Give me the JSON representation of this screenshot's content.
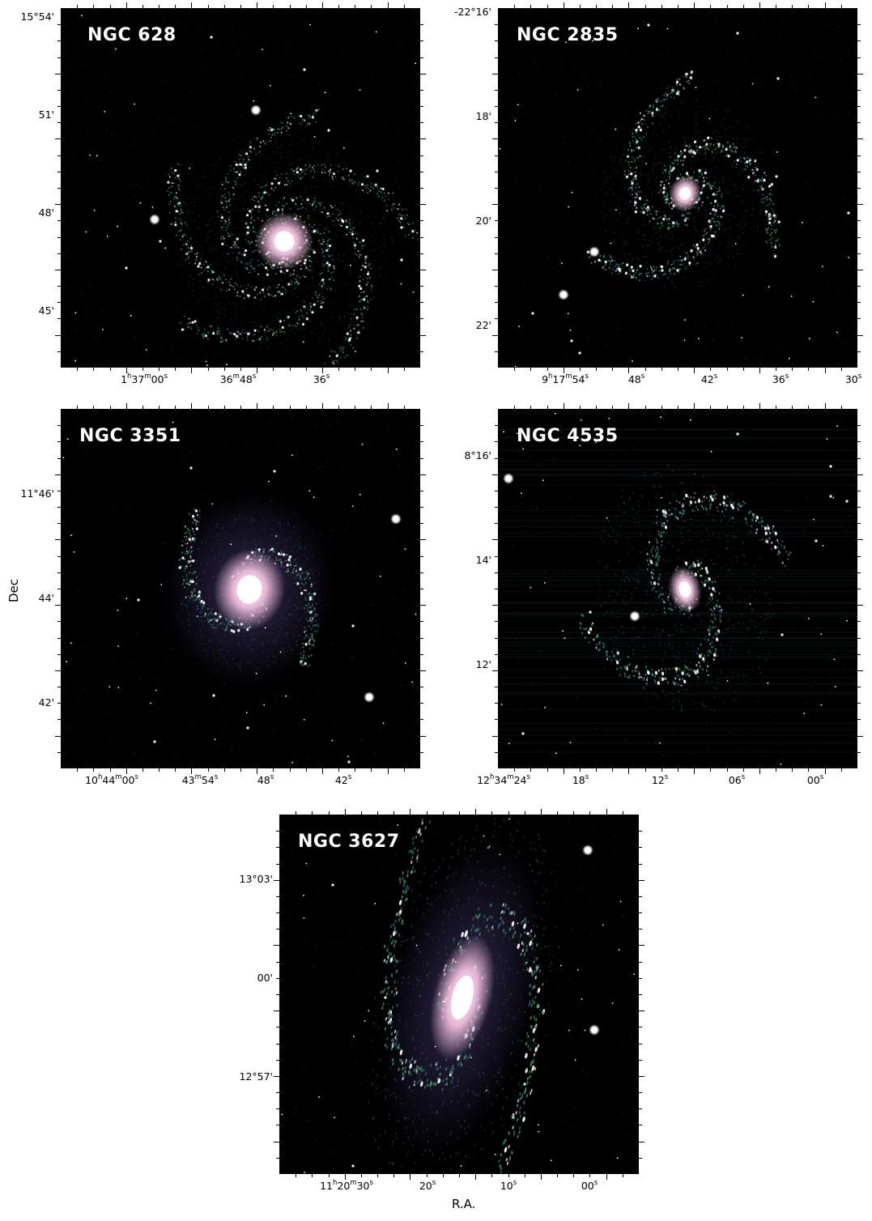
{
  "figure": {
    "ylabel": "Dec",
    "xlabel": "R.A."
  },
  "panels": [
    {
      "id": "ngc628",
      "name": "NGC 628",
      "dec_ticks": [
        "15°54'",
        "51'",
        "48'",
        "45'"
      ],
      "ra_ticks": [
        {
          "h": "1",
          "hu": "h",
          "m": "37",
          "mu": "m",
          "s": "00",
          "su": "s"
        },
        {
          "h": "",
          "hu": "",
          "m": "36",
          "mu": "m",
          "s": "48",
          "su": "s"
        },
        {
          "h": "",
          "hu": "",
          "m": "",
          "mu": "",
          "s": "36",
          "su": "s"
        }
      ]
    },
    {
      "id": "ngc2835",
      "name": "NGC 2835",
      "dec_ticks": [
        "-22°16'",
        "18'",
        "20'",
        "22'"
      ],
      "ra_ticks": [
        {
          "h": "9",
          "hu": "h",
          "m": "17",
          "mu": "m",
          "s": "54",
          "su": "s"
        },
        {
          "h": "",
          "hu": "",
          "m": "",
          "mu": "",
          "s": "48",
          "su": "s"
        },
        {
          "h": "",
          "hu": "",
          "m": "",
          "mu": "",
          "s": "42",
          "su": "s"
        },
        {
          "h": "",
          "hu": "",
          "m": "",
          "mu": "",
          "s": "36",
          "su": "s"
        },
        {
          "h": "",
          "hu": "",
          "m": "",
          "mu": "",
          "s": "30",
          "su": "s"
        }
      ]
    },
    {
      "id": "ngc3351",
      "name": "NGC 3351",
      "dec_ticks": [
        "11°46'",
        "44'",
        "42'"
      ],
      "ra_ticks": [
        {
          "h": "10",
          "hu": "h",
          "m": "44",
          "mu": "m",
          "s": "00",
          "su": "s"
        },
        {
          "h": "",
          "hu": "",
          "m": "43",
          "mu": "m",
          "s": "54",
          "su": "s"
        },
        {
          "h": "",
          "hu": "",
          "m": "",
          "mu": "",
          "s": "48",
          "su": "s"
        },
        {
          "h": "",
          "hu": "",
          "m": "",
          "mu": "",
          "s": "42",
          "su": "s"
        }
      ]
    },
    {
      "id": "ngc4535",
      "name": "NGC 4535",
      "dec_ticks": [
        "8°16'",
        "14'",
        "12'"
      ],
      "ra_ticks": [
        {
          "h": "12",
          "hu": "h",
          "m": "34",
          "mu": "m",
          "s": "24",
          "su": "s"
        },
        {
          "h": "",
          "hu": "",
          "m": "",
          "mu": "",
          "s": "18",
          "su": "s"
        },
        {
          "h": "",
          "hu": "",
          "m": "",
          "mu": "",
          "s": "12",
          "su": "s"
        },
        {
          "h": "",
          "hu": "",
          "m": "",
          "mu": "",
          "s": "06",
          "su": "s"
        },
        {
          "h": "",
          "hu": "",
          "m": "",
          "mu": "",
          "s": "00",
          "su": "s"
        }
      ]
    },
    {
      "id": "ngc3627",
      "name": "NGC 3627",
      "dec_ticks": [
        "13°03'",
        "00'",
        "12°57'"
      ],
      "ra_ticks": [
        {
          "h": "11",
          "hu": "h",
          "m": "20",
          "mu": "m",
          "s": "30",
          "su": "s"
        },
        {
          "h": "",
          "hu": "",
          "m": "",
          "mu": "",
          "s": "20",
          "su": "s"
        },
        {
          "h": "",
          "hu": "",
          "m": "",
          "mu": "",
          "s": "10",
          "su": "s"
        },
        {
          "h": "",
          "hu": "",
          "m": "",
          "mu": "",
          "s": "00",
          "su": "s"
        }
      ]
    }
  ],
  "colors": {
    "background": "#000000",
    "arm_green": "#3f8a55",
    "arm_teal": "#2a5a66",
    "core_pink": "#e7b7d6",
    "halo_purple": "#3a2f5e",
    "star": "#ffffff"
  }
}
